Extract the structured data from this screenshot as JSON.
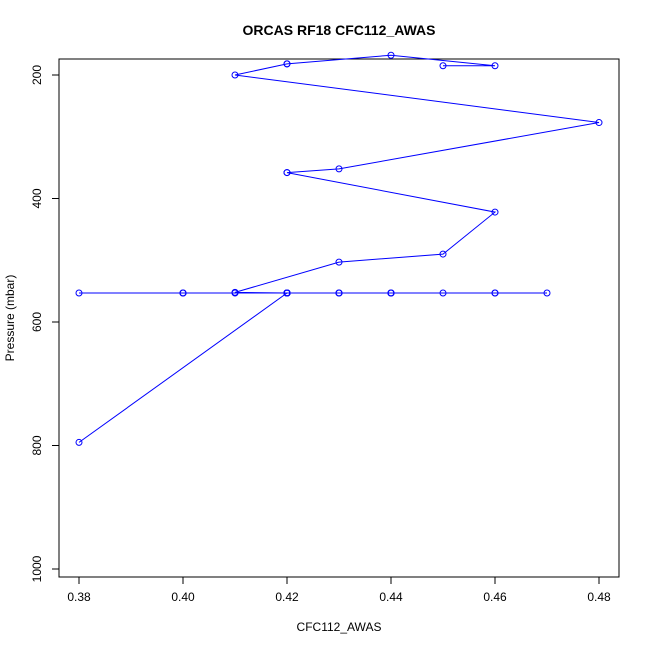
{
  "chart_data": {
    "type": "line",
    "title": "ORCAS RF18 CFC112_AWAS",
    "xlabel": "CFC112_AWAS",
    "ylabel": "Pressure (mbar)",
    "xlim": [
      0.38,
      0.48
    ],
    "ylim": [
      1000,
      170
    ],
    "y_reversed": true,
    "x_ticks": [
      "0.38",
      "0.40",
      "0.42",
      "0.44",
      "0.46",
      "0.48"
    ],
    "x_tick_values": [
      0.38,
      0.4,
      0.42,
      0.44,
      0.46,
      0.48
    ],
    "y_ticks": [
      "200",
      "400",
      "600",
      "800",
      "1000"
    ],
    "y_tick_values": [
      200,
      400,
      600,
      800,
      1000
    ],
    "grid": false,
    "color": "#0000ff",
    "series": [
      {
        "x": [
          0.45,
          0.46,
          0.44,
          0.42,
          0.42,
          0.41,
          0.48,
          0.43,
          0.42,
          0.42,
          0.46,
          0.45,
          0.43,
          0.41,
          0.42,
          0.43,
          0.44,
          0.45,
          0.44,
          0.42,
          0.4,
          0.42,
          0.47,
          0.46,
          0.46,
          0.44,
          0.42,
          0.4,
          0.43,
          0.42,
          0.42,
          0.42,
          0.38,
          0.43,
          0.44,
          0.4,
          0.41,
          0.42,
          0.42,
          0.42,
          0.42,
          0.42,
          0.38
        ],
        "y": [
          185,
          185,
          168,
          182,
          182,
          200,
          277,
          352,
          358,
          358,
          422,
          490,
          503,
          552,
          553,
          553,
          553,
          553,
          553,
          553,
          553,
          553,
          553,
          553,
          553,
          553,
          553,
          553,
          553,
          553,
          553,
          553,
          553,
          553,
          553,
          553,
          553,
          553,
          553,
          553,
          553,
          553,
          795
        ]
      }
    ]
  }
}
